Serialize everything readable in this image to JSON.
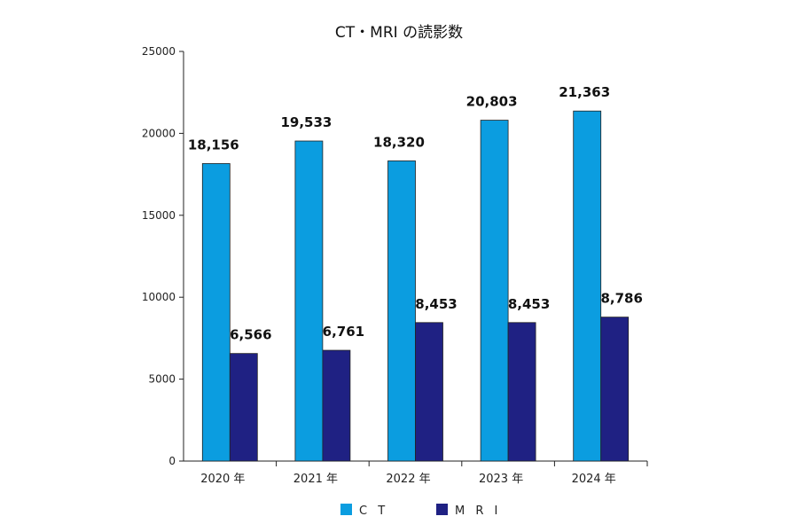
{
  "chart_data": {
    "type": "bar",
    "title": "CT・MRI の読影数",
    "categories": [
      "2020 年",
      "2021 年",
      "2022 年",
      "2023 年",
      "2024 年"
    ],
    "series": [
      {
        "name": "CT",
        "values": [
          18156,
          19533,
          18320,
          20803,
          21363
        ],
        "labels": [
          "18,156",
          "19,533",
          "18,320",
          "20,803",
          "21,363"
        ],
        "color": "#0b9de0"
      },
      {
        "name": "MRI",
        "values": [
          6566,
          6761,
          8453,
          8453,
          8786
        ],
        "labels": [
          "6,566",
          "6,761",
          "8,453",
          "8,453",
          "8,786"
        ],
        "color": "#1f2183"
      }
    ],
    "ylim": [
      0,
      25000
    ],
    "yticks": [
      "0",
      "5000",
      "10000",
      "15000",
      "20000",
      "25000"
    ],
    "legend": [
      "C T",
      "M R I"
    ],
    "legend_position": "bottom",
    "grid": false
  }
}
